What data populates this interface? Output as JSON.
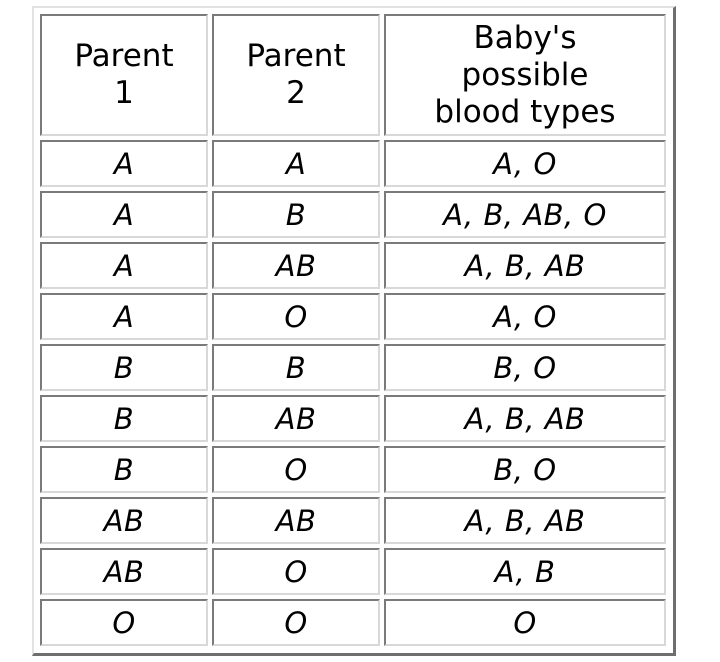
{
  "table": {
    "headers": [
      {
        "line1": "Parent",
        "line2": "1",
        "line3": ""
      },
      {
        "line1": "Parent",
        "line2": "2",
        "line3": ""
      },
      {
        "line1": "Baby's",
        "line2": "possible",
        "line3": "blood types"
      }
    ],
    "rows": [
      {
        "parent1": "A",
        "parent2": "A",
        "baby": "A, O"
      },
      {
        "parent1": "A",
        "parent2": "B",
        "baby": "A, B, AB, O"
      },
      {
        "parent1": "A",
        "parent2": "AB",
        "baby": "A, B, AB"
      },
      {
        "parent1": "A",
        "parent2": "O",
        "baby": "A, O"
      },
      {
        "parent1": "B",
        "parent2": "B",
        "baby": "B, O"
      },
      {
        "parent1": "B",
        "parent2": "AB",
        "baby": "A, B, AB"
      },
      {
        "parent1": "B",
        "parent2": "O",
        "baby": "B, O"
      },
      {
        "parent1": "AB",
        "parent2": "AB",
        "baby": "A, B, AB"
      },
      {
        "parent1": "AB",
        "parent2": "O",
        "baby": "A, B"
      },
      {
        "parent1": "O",
        "parent2": "O",
        "baby": "O"
      }
    ]
  }
}
